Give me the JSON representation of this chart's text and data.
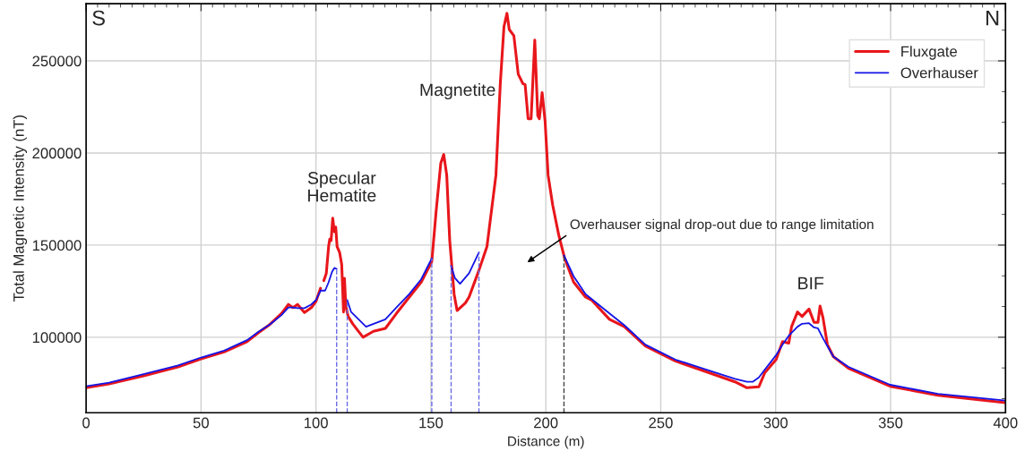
{
  "chart_data": {
    "type": "line",
    "xlabel": "Distance (m)",
    "ylabel": "Total Magnetic Intensity (nT)",
    "xlim": [
      0,
      400
    ],
    "xticks": [
      0,
      50,
      100,
      150,
      200,
      250,
      300,
      350,
      400
    ],
    "ylim": [
      59000,
      281000
    ],
    "yticks": [
      100000,
      150000,
      200000,
      250000
    ],
    "grid": true,
    "legend": "top right",
    "marker": "none",
    "line_style": "solid",
    "series": [
      {
        "name": "Fluxgate",
        "color": "#e8161b",
        "x": [
          0,
          10,
          25,
          40,
          50,
          60,
          70,
          75,
          80,
          85,
          88,
          90,
          92,
          95,
          98,
          100,
          102,
          102.7,
          103.4,
          104.5,
          105.5,
          106,
          106.6,
          107.3,
          108,
          108.6,
          109.2,
          110.3,
          111.2,
          112,
          112.4,
          113,
          114,
          116,
          118,
          120.5,
          125,
          130.2,
          135,
          140.6,
          145.8,
          150.4,
          152.3,
          154.3,
          155.6,
          156.9,
          158.2,
          160.1,
          161.4,
          165,
          166.6,
          170.9,
          174.4,
          178.3,
          180.2,
          181.8,
          183.1,
          184.1,
          186.1,
          188.0,
          190.0,
          191.0,
          192.3,
          193.6,
          195.2,
          196.5,
          197.2,
          198.4,
          199.7,
          201.0,
          203.0,
          205.6,
          208.2,
          212.1,
          217.3,
          219.9,
          227.7,
          234.2,
          243.3,
          256.3,
          269.3,
          282.3,
          287.5,
          292.7,
          295.2,
          300.2,
          303.0,
          305.7,
          306.9,
          309.5,
          311.5,
          314.5,
          316.7,
          318.4,
          319.3,
          320.6,
          322.5,
          325.1,
          331.7,
          349.8,
          370.6,
          400
        ],
        "values": [
          72600,
          74700,
          79000,
          83900,
          88200,
          92000,
          97600,
          102500,
          107000,
          112900,
          117800,
          116100,
          117800,
          113400,
          116100,
          119400,
          126600,
          null,
          130700,
          134700,
          149200,
          153200,
          152500,
          164600,
          157300,
          159800,
          149200,
          146000,
          139500,
          113700,
          132000,
          116900,
          111300,
          107300,
          104000,
          100000,
          103200,
          104800,
          112900,
          121800,
          129900,
          141100,
          168600,
          194400,
          199200,
          187900,
          152500,
          123400,
          114500,
          118600,
          121800,
          136300,
          149200,
          187900,
          237700,
          268600,
          275800,
          267000,
          263700,
          242800,
          237700,
          237100,
          218600,
          218600,
          261300,
          220200,
          218600,
          232800,
          217000,
          187900,
          171700,
          155600,
          142800,
          129900,
          121800,
          120200,
          109700,
          105700,
          95200,
          87100,
          81500,
          75800,
          72600,
          73100,
          80600,
          87900,
          97600,
          96800,
          105700,
          113700,
          111300,
          115300,
          108100,
          108100,
          116900,
          110500,
          96000,
          89500,
          83100,
          73400,
          68500,
          64500
        ]
      },
      {
        "name": "Overhauser",
        "color": "#1414e6",
        "x": [
          0,
          10,
          25,
          40,
          50,
          60,
          70,
          75,
          80,
          85,
          88,
          90,
          92,
          95,
          98,
          100,
          102,
          104,
          105.5,
          107,
          108,
          109,
          111,
          113.6,
          115.3,
          121.8,
          130.2,
          135,
          140.6,
          145.8,
          150.4,
          154,
          158.8,
          160.5,
          162.7,
          166.6,
          170.9,
          190,
          207.9,
          212.1,
          217.3,
          227.7,
          234.2,
          243.3,
          256.3,
          269.3,
          282.3,
          287.5,
          290,
          292.7,
          295.2,
          300.2,
          303.0,
          305.7,
          309.5,
          311.5,
          314.5,
          316.7,
          318.4,
          320.6,
          322.5,
          325.1,
          331.7,
          349.8,
          370.6,
          400
        ],
        "values": [
          73400,
          75400,
          80000,
          84700,
          89000,
          92700,
          98400,
          103000,
          107000,
          112000,
          116100,
          116100,
          115800,
          115800,
          117800,
          120200,
          125300,
          125300,
          129800,
          135500,
          137600,
          137100,
          null,
          120200,
          113700,
          105700,
          109700,
          116100,
          123400,
          131500,
          142800,
          null,
          138700,
          132000,
          129000,
          134700,
          146000,
          null,
          144400,
          133100,
          123400,
          112900,
          106500,
          96000,
          87900,
          82600,
          77400,
          75800,
          75800,
          78200,
          82300,
          90300,
          96000,
          100800,
          105700,
          107300,
          107600,
          105300,
          104800,
          99400,
          95200,
          89500,
          83900,
          74200,
          69300,
          65600
        ]
      }
    ],
    "ref_lines": [
      {
        "axis": "x",
        "value": 109,
        "color": "#6a6ae6",
        "line_style": "dashed"
      },
      {
        "axis": "x",
        "value": 113.6,
        "color": "#6a6ae6",
        "line_style": "dashed"
      },
      {
        "axis": "x",
        "value": 150.4,
        "color": "#6a6ae6",
        "line_style": "dashed"
      },
      {
        "axis": "x",
        "value": 158.8,
        "color": "#6a6ae6",
        "line_style": "dashed"
      },
      {
        "axis": "x",
        "value": 170.9,
        "color": "#6a6ae6",
        "line_style": "dashed"
      },
      {
        "axis": "x",
        "value": 207.9,
        "color": "#404040",
        "line_style": "dashed"
      }
    ],
    "annotations": [
      "S",
      "N",
      "Specular\nHematite",
      "Magnetite",
      "BIF",
      "Overhauser signal drop-out due to range limitation"
    ]
  }
}
